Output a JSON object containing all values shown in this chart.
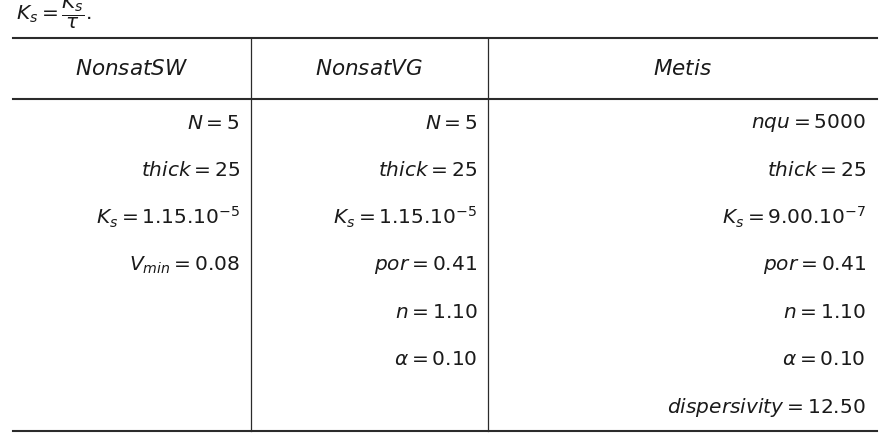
{
  "headers": [
    "NonsatSW",
    "NonsatVG",
    "Metis"
  ],
  "col1_rows": [
    "$N = 5$",
    "$thick = 25$",
    "$K_s = 1.15.10^{-5}$",
    "$V_{min} = 0.08$",
    "",
    "",
    ""
  ],
  "col2_rows": [
    "$N = 5$",
    "$thick = 25$",
    "$K_s = 1.15.10^{-5}$",
    "$por = 0.41$",
    "$n = 1.10$",
    "$\\alpha = 0.10$",
    ""
  ],
  "col3_rows": [
    "$nqu = 5000$",
    "$thick = 25$",
    "$K_s = 9.00.10^{-7}$",
    "$por = 0.41$",
    "$n = 1.10$",
    "$\\alpha = 0.10$",
    "$dispersivity = 12.50$"
  ],
  "background_color": "#ffffff",
  "line_color": "#2b2b2b",
  "text_color": "#1a1a1a",
  "fontsize": 14.5,
  "header_fontsize": 15.5,
  "top_text": "$K_s = \\frac{K_s}{\\tau}.$"
}
